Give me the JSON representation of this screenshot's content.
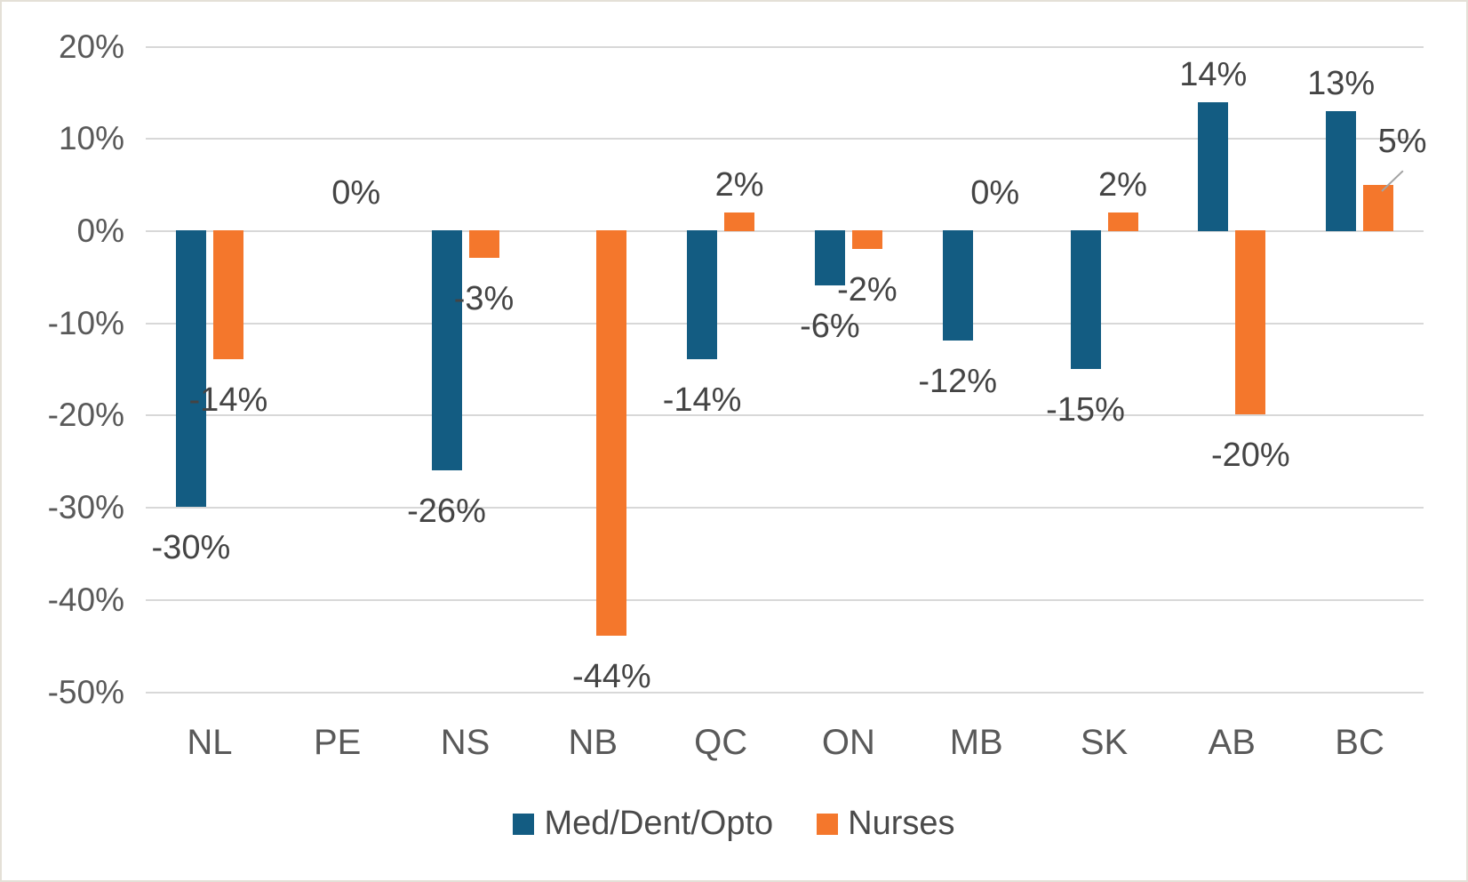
{
  "chart_data": {
    "type": "bar",
    "title": "",
    "xlabel": "",
    "ylabel": "",
    "categories": [
      "NL",
      "PE",
      "NS",
      "NB",
      "QC",
      "ON",
      "MB",
      "SK",
      "AB",
      "BC"
    ],
    "series": [
      {
        "name": "Med/Dent/Opto",
        "color": "#135C82",
        "values": [
          -30,
          null,
          -26,
          null,
          -14,
          -6,
          -12,
          -15,
          14,
          13
        ],
        "labels": [
          "-30%",
          "",
          "-26%",
          "",
          "-14%",
          "-6%",
          "-12%",
          "-15%",
          "14%",
          "13%"
        ]
      },
      {
        "name": "Nurses",
        "color": "#F4772C",
        "values": [
          -14,
          0,
          -3,
          -44,
          2,
          -2,
          0,
          2,
          -20,
          5
        ],
        "labels": [
          "-14%",
          "0%",
          "-3%",
          "-44%",
          "2%",
          "-2%",
          "0%",
          "2%",
          "-20%",
          "5%"
        ]
      }
    ],
    "y_axis": {
      "tick_labels": [
        "20%",
        "10%",
        "0%",
        "-10%",
        "-20%",
        "-30%",
        "-40%",
        "-50%"
      ],
      "tick_values": [
        20,
        10,
        0,
        -10,
        -20,
        -30,
        -40,
        -50
      ],
      "min": -50,
      "max": 20,
      "grid": true
    },
    "legend": {
      "position": "bottom",
      "entries": [
        "Med/Dent/Opto",
        "Nurses"
      ]
    },
    "annotations": {
      "bc_nurses_label_moved": true,
      "leader_line_series": "Nurses",
      "leader_line_category": "BC"
    }
  },
  "colors": {
    "background": "#FFFFFF",
    "gridline": "#D8D8D8",
    "axis_text": "#595959",
    "data_label_text": "#444444",
    "legend_text": "#4A4A4A",
    "leader_line": "#A3A3A3",
    "border": "#E4E0D7"
  }
}
